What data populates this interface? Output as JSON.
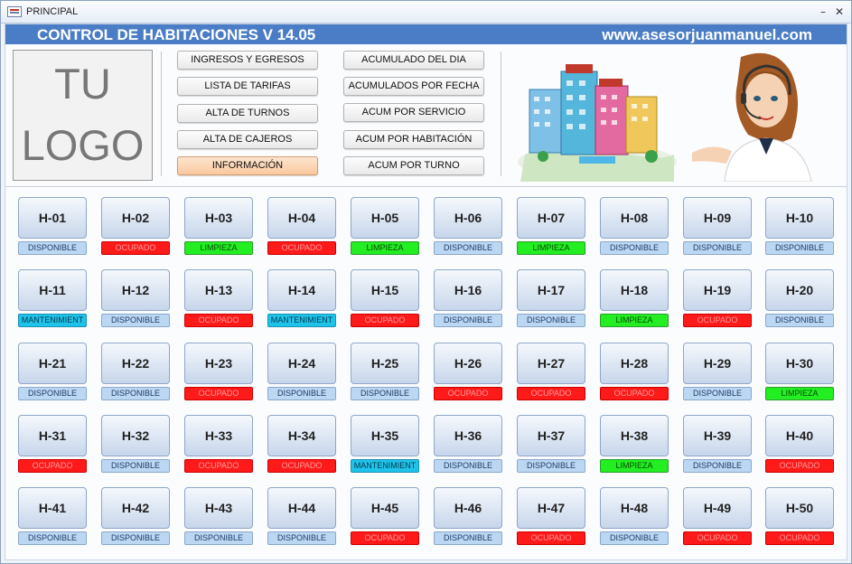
{
  "window": {
    "title": "PRINCIPAL",
    "minimize": "–",
    "close": "✕"
  },
  "header": {
    "title": "CONTROL DE HABITACIONES V 14.05",
    "url": "www.asesorjuanmanuel.com"
  },
  "logo": {
    "line1": "TU",
    "line2": "LOGO"
  },
  "menu": {
    "left": [
      "INGRESOS Y EGRESOS",
      "LISTA DE TARIFAS",
      "ALTA DE TURNOS",
      "ALTA DE CAJEROS",
      "INFORMACIÓN"
    ],
    "right": [
      "ACUMULADO DEL DIA",
      "ACUMULADOS POR FECHA",
      "ACUM POR SERVICIO",
      "ACUM POR HABITACIÓN",
      "ACUM POR TURNO"
    ]
  },
  "images": {
    "hotel": "hotel-buildings-illustration",
    "agent": "call-center-agent-illustration"
  },
  "status_colors": {
    "DISPONIBLE": "#bcd7f2",
    "OCUPADO": "#ff1a1a",
    "LIMPIEZA": "#22ee22",
    "MANTENIMIENT": "#1ec3ea"
  },
  "rooms": [
    {
      "label": "H-01",
      "status": "DISPONIBLE"
    },
    {
      "label": "H-02",
      "status": "OCUPADO"
    },
    {
      "label": "H-03",
      "status": "LIMPIEZA"
    },
    {
      "label": "H-04",
      "status": "OCUPADO"
    },
    {
      "label": "H-05",
      "status": "LIMPIEZA"
    },
    {
      "label": "H-06",
      "status": "DISPONIBLE"
    },
    {
      "label": "H-07",
      "status": "LIMPIEZA"
    },
    {
      "label": "H-08",
      "status": "DISPONIBLE"
    },
    {
      "label": "H-09",
      "status": "DISPONIBLE"
    },
    {
      "label": "H-10",
      "status": "DISPONIBLE"
    },
    {
      "label": "H-11",
      "status": "MANTENIMIENT"
    },
    {
      "label": "H-12",
      "status": "DISPONIBLE"
    },
    {
      "label": "H-13",
      "status": "OCUPADO"
    },
    {
      "label": "H-14",
      "status": "MANTENIMIENT"
    },
    {
      "label": "H-15",
      "status": "OCUPADO"
    },
    {
      "label": "H-16",
      "status": "DISPONIBLE"
    },
    {
      "label": "H-17",
      "status": "DISPONIBLE"
    },
    {
      "label": "H-18",
      "status": "LIMPIEZA"
    },
    {
      "label": "H-19",
      "status": "OCUPADO"
    },
    {
      "label": "H-20",
      "status": "DISPONIBLE"
    },
    {
      "label": "H-21",
      "status": "DISPONIBLE"
    },
    {
      "label": "H-22",
      "status": "DISPONIBLE"
    },
    {
      "label": "H-23",
      "status": "OCUPADO"
    },
    {
      "label": "H-24",
      "status": "DISPONIBLE"
    },
    {
      "label": "H-25",
      "status": "DISPONIBLE"
    },
    {
      "label": "H-26",
      "status": "OCUPADO"
    },
    {
      "label": "H-27",
      "status": "OCUPADO"
    },
    {
      "label": "H-28",
      "status": "OCUPADO"
    },
    {
      "label": "H-29",
      "status": "DISPONIBLE"
    },
    {
      "label": "H-30",
      "status": "LIMPIEZA"
    },
    {
      "label": "H-31",
      "status": "OCUPADO"
    },
    {
      "label": "H-32",
      "status": "DISPONIBLE"
    },
    {
      "label": "H-33",
      "status": "OCUPADO"
    },
    {
      "label": "H-34",
      "status": "OCUPADO"
    },
    {
      "label": "H-35",
      "status": "MANTENIMIENT"
    },
    {
      "label": "H-36",
      "status": "DISPONIBLE"
    },
    {
      "label": "H-37",
      "status": "DISPONIBLE"
    },
    {
      "label": "H-38",
      "status": "LIMPIEZA"
    },
    {
      "label": "H-39",
      "status": "DISPONIBLE"
    },
    {
      "label": "H-40",
      "status": "OCUPADO"
    },
    {
      "label": "H-41",
      "status": "DISPONIBLE"
    },
    {
      "label": "H-42",
      "status": "DISPONIBLE"
    },
    {
      "label": "H-43",
      "status": "DISPONIBLE"
    },
    {
      "label": "H-44",
      "status": "DISPONIBLE"
    },
    {
      "label": "H-45",
      "status": "OCUPADO"
    },
    {
      "label": "H-46",
      "status": "DISPONIBLE"
    },
    {
      "label": "H-47",
      "status": "OCUPADO"
    },
    {
      "label": "H-48",
      "status": "DISPONIBLE"
    },
    {
      "label": "H-49",
      "status": "OCUPADO"
    },
    {
      "label": "H-50",
      "status": "OCUPADO"
    }
  ]
}
